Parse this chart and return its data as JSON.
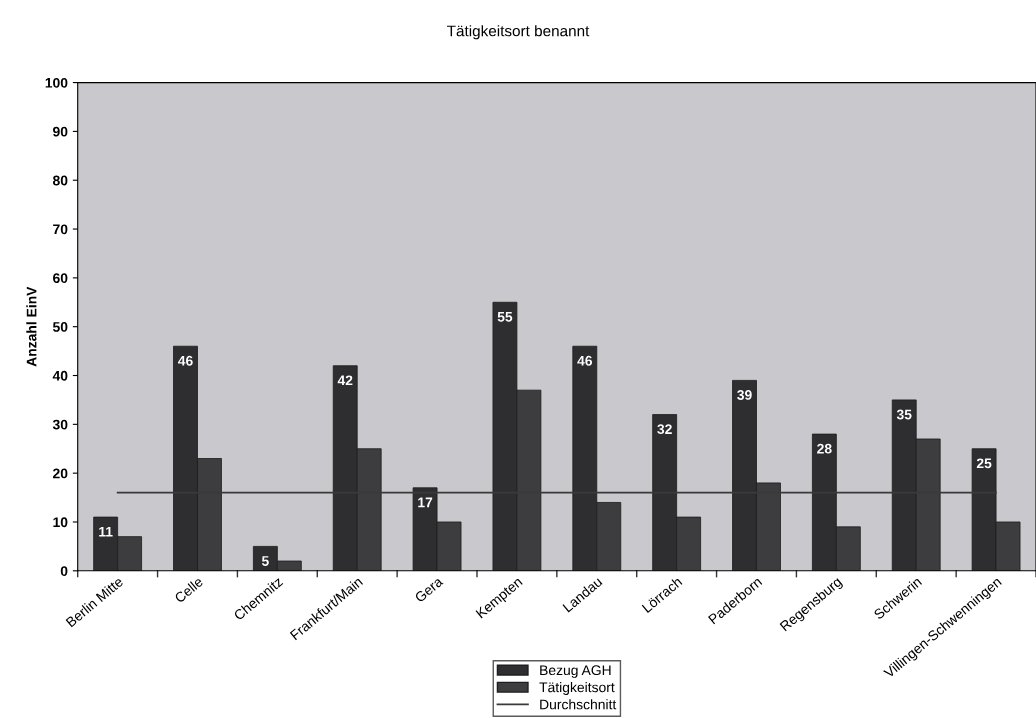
{
  "chart_data": {
    "type": "bar",
    "title": "Tätigkeitsort benannt",
    "ylabel": "Anzahl EinV",
    "categories": [
      "Berlin Mitte",
      "Celle",
      "Chemnitz",
      "Frankfurt/Main",
      "Gera",
      "Kempten",
      "Landau",
      "Lörrach",
      "Paderborn",
      "Regensburg",
      "Schwerin",
      "Villingen-Schwenningen"
    ],
    "series": [
      {
        "name": "Bezug AGH",
        "color": "#2e2e30",
        "values": [
          11,
          46,
          5,
          42,
          17,
          55,
          46,
          32,
          39,
          28,
          35,
          25
        ],
        "value_labels": [
          "11",
          "46",
          "5",
          "42",
          "17",
          "55",
          "46",
          "32",
          "39",
          "28",
          "35",
          "25"
        ]
      },
      {
        "name": "Tätigkeitsort",
        "color": "#3d3d3f",
        "values": [
          7,
          23,
          2,
          25,
          10,
          37,
          14,
          11,
          18,
          9,
          27,
          10
        ]
      },
      {
        "name": "Durchschnitt",
        "type": "line",
        "color": "#3a3a3a",
        "values": [
          16,
          16,
          16,
          16,
          16,
          16,
          16,
          16,
          16,
          16,
          16,
          16
        ]
      }
    ],
    "ylim": [
      0,
      100
    ],
    "yticks": [
      0,
      10,
      20,
      30,
      40,
      50,
      60,
      70,
      80,
      90,
      100
    ],
    "grid": false,
    "legend": "bottom",
    "marker": "none",
    "line_style": "solid"
  }
}
